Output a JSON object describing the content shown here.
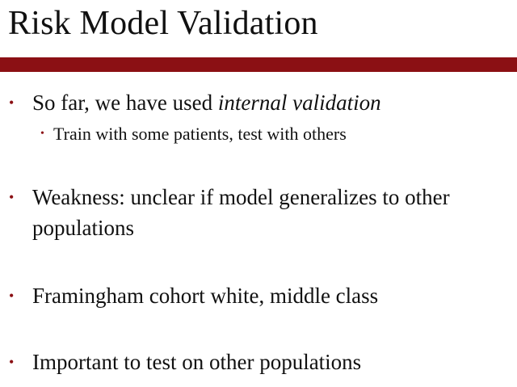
{
  "slide": {
    "title": "Risk Model Validation",
    "accent_color": "#8b1014",
    "bullet_glyph": "•",
    "bullets": [
      {
        "text_before": "So far, we have used ",
        "emphasis": "internal validation",
        "sub_bullets": [
          {
            "text": "Train with some patients, test with others"
          }
        ]
      },
      {
        "line1": "Weakness: unclear if  model generalizes to other",
        "line2": "populations"
      },
      {
        "text": "Framingham cohort white, middle class"
      },
      {
        "text": "Important to test on other populations"
      }
    ]
  }
}
